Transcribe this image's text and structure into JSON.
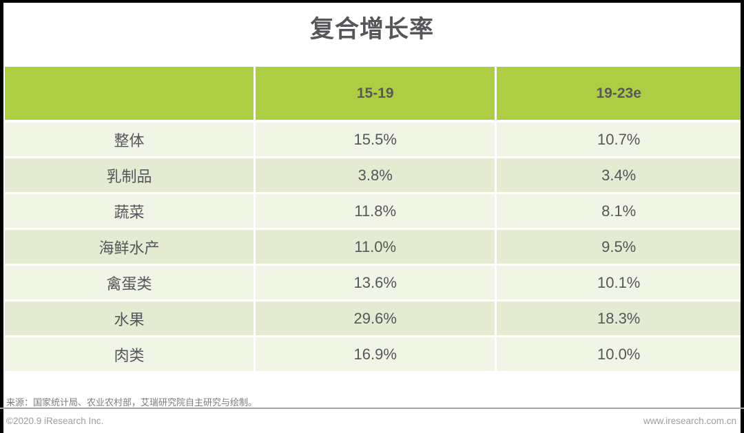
{
  "title": "复合增长率",
  "chart_data": {
    "type": "table",
    "title": "复合增长率",
    "columns": [
      "",
      "15-19",
      "19-23e"
    ],
    "rows": [
      {
        "label": "整体",
        "v1519": "15.5%",
        "v1923e": "10.7%"
      },
      {
        "label": "乳制品",
        "v1519": "3.8%",
        "v1923e": "3.4%"
      },
      {
        "label": "蔬菜",
        "v1519": "11.8%",
        "v1923e": "8.1%"
      },
      {
        "label": "海鲜水产",
        "v1519": "11.0%",
        "v1923e": "9.5%"
      },
      {
        "label": "禽蛋类",
        "v1519": "13.6%",
        "v1923e": "10.1%"
      },
      {
        "label": "水果",
        "v1519": "29.6%",
        "v1923e": "18.3%"
      },
      {
        "label": "肉类",
        "v1519": "16.9%",
        "v1923e": "10.0%"
      }
    ],
    "layout": {
      "header_position": "top",
      "alternating_rows": true
    }
  },
  "footer": {
    "source": "来源：国家统计局、农业农村部，艾瑞研究院自主研究与绘制。",
    "copyright": "©2020.9 iResearch Inc.",
    "website": "www.iresearch.com.cn"
  },
  "colors": {
    "header_green": "#abce44",
    "row_odd": "#e4ebd2",
    "row_even": "#f1f5e5",
    "text_dark": "#55565a",
    "footer_gray": "#9d9da1",
    "divider_gray": "#a2a2a8"
  }
}
